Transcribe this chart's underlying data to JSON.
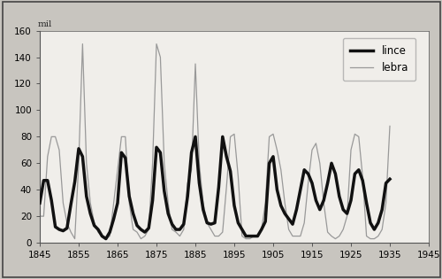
{
  "years": [
    1845,
    1846,
    1847,
    1848,
    1849,
    1850,
    1851,
    1852,
    1853,
    1854,
    1855,
    1856,
    1857,
    1858,
    1859,
    1860,
    1861,
    1862,
    1863,
    1864,
    1865,
    1866,
    1867,
    1868,
    1869,
    1870,
    1871,
    1872,
    1873,
    1874,
    1875,
    1876,
    1877,
    1878,
    1879,
    1880,
    1881,
    1882,
    1883,
    1884,
    1885,
    1886,
    1887,
    1888,
    1889,
    1890,
    1891,
    1892,
    1893,
    1894,
    1895,
    1896,
    1897,
    1898,
    1899,
    1900,
    1901,
    1902,
    1903,
    1904,
    1905,
    1906,
    1907,
    1908,
    1909,
    1910,
    1911,
    1912,
    1913,
    1914,
    1915,
    1916,
    1917,
    1918,
    1919,
    1920,
    1921,
    1922,
    1923,
    1924,
    1925,
    1926,
    1927,
    1928,
    1929,
    1930,
    1931,
    1932,
    1933,
    1934,
    1935
  ],
  "lynx": [
    30,
    47,
    47,
    32,
    12,
    10,
    9,
    11,
    29,
    46,
    71,
    65,
    35,
    22,
    13,
    10,
    5,
    3,
    8,
    18,
    30,
    68,
    64,
    35,
    22,
    13,
    10,
    8,
    11,
    32,
    72,
    68,
    39,
    22,
    14,
    10,
    10,
    14,
    35,
    68,
    80,
    45,
    25,
    15,
    14,
    15,
    42,
    80,
    65,
    54,
    28,
    15,
    10,
    5,
    5,
    5,
    5,
    10,
    16,
    60,
    65,
    40,
    28,
    22,
    18,
    14,
    25,
    40,
    55,
    52,
    45,
    32,
    25,
    32,
    45,
    60,
    52,
    35,
    25,
    22,
    32,
    52,
    55,
    47,
    30,
    15,
    10,
    15,
    25,
    45,
    48
  ],
  "hare": [
    20,
    20,
    65,
    80,
    80,
    70,
    30,
    15,
    8,
    3,
    60,
    150,
    60,
    30,
    15,
    8,
    5,
    3,
    5,
    30,
    55,
    80,
    80,
    30,
    10,
    8,
    3,
    5,
    10,
    60,
    150,
    140,
    60,
    30,
    10,
    8,
    5,
    10,
    45,
    55,
    135,
    60,
    30,
    15,
    10,
    5,
    5,
    8,
    42,
    80,
    82,
    50,
    5,
    3,
    3,
    5,
    5,
    10,
    30,
    80,
    82,
    70,
    55,
    30,
    10,
    5,
    5,
    5,
    15,
    45,
    70,
    75,
    60,
    30,
    8,
    5,
    3,
    5,
    10,
    20,
    70,
    82,
    80,
    50,
    5,
    3,
    3,
    5,
    10,
    30,
    88
  ],
  "xlim": [
    1845,
    1945
  ],
  "ylim": [
    0,
    160
  ],
  "yticks": [
    0,
    20,
    40,
    60,
    80,
    100,
    120,
    140,
    160
  ],
  "xticks": [
    1845,
    1855,
    1865,
    1875,
    1885,
    1895,
    1905,
    1915,
    1925,
    1935,
    1945
  ],
  "ylabel_text": "mil",
  "lynx_label": "lince",
  "hare_label": "lebra",
  "lynx_color": "#111111",
  "hare_color": "#999999",
  "lynx_linewidth": 2.5,
  "hare_linewidth": 0.9,
  "bg_color": "#c8c5bf",
  "plot_bg": "#f0eeea",
  "border_color": "#555555",
  "fontsize_tick": 7.5,
  "fontsize_legend": 8.5,
  "fontsize_ylabel": 7.5
}
